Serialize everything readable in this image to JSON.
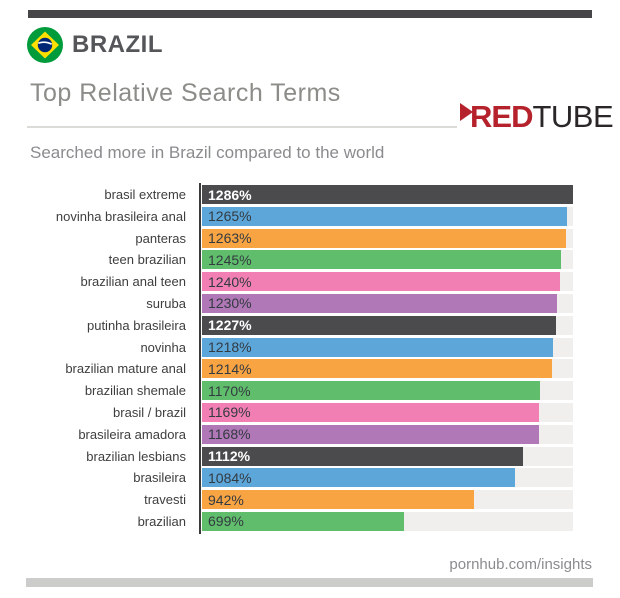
{
  "header": {
    "country": "BRAZIL",
    "flag_icon": "brazil-flag-icon",
    "title": "Top Relative Search Terms",
    "subtitle": "Searched more in Brazil compared to the world",
    "logo": {
      "red": "RED",
      "tube": "TUBE",
      "accent_color": "#b6222c",
      "text_color": "#2b2728"
    }
  },
  "footer": {
    "site": "pornhub.com/insights"
  },
  "chart_data": {
    "type": "bar",
    "orientation": "horizontal",
    "title": "Top Relative Search Terms",
    "subtitle": "Searched more in Brazil compared to the world",
    "categories": [
      "brasil extreme",
      "novinha brasileira anal",
      "panteras",
      "teen brazilian",
      "brazilian anal teen",
      "suruba",
      "putinha brasileira",
      "novinha",
      "brazilian mature anal",
      "brazilian shemale",
      "brasil / brazil",
      "brasileira amadora",
      "brazilian lesbians",
      "brasileira",
      "travesti",
      "brazilian"
    ],
    "values": [
      1286,
      1265,
      1263,
      1245,
      1240,
      1230,
      1227,
      1218,
      1214,
      1170,
      1169,
      1168,
      1112,
      1084,
      942,
      699
    ],
    "value_suffix": "%",
    "xlim": [
      0,
      1286
    ],
    "grid": false,
    "legend": "none",
    "track_color": "#f0efed",
    "axis_color": "#3b3b3c",
    "color_cycle": [
      "dark",
      "blue",
      "orange",
      "green",
      "pink",
      "purple"
    ],
    "colors": {
      "dark": "#4b4b4d",
      "blue": "#5ca6da",
      "orange": "#f9a443",
      "green": "#60bd6c",
      "pink": "#f17fb3",
      "purple": "#b078b6"
    }
  }
}
